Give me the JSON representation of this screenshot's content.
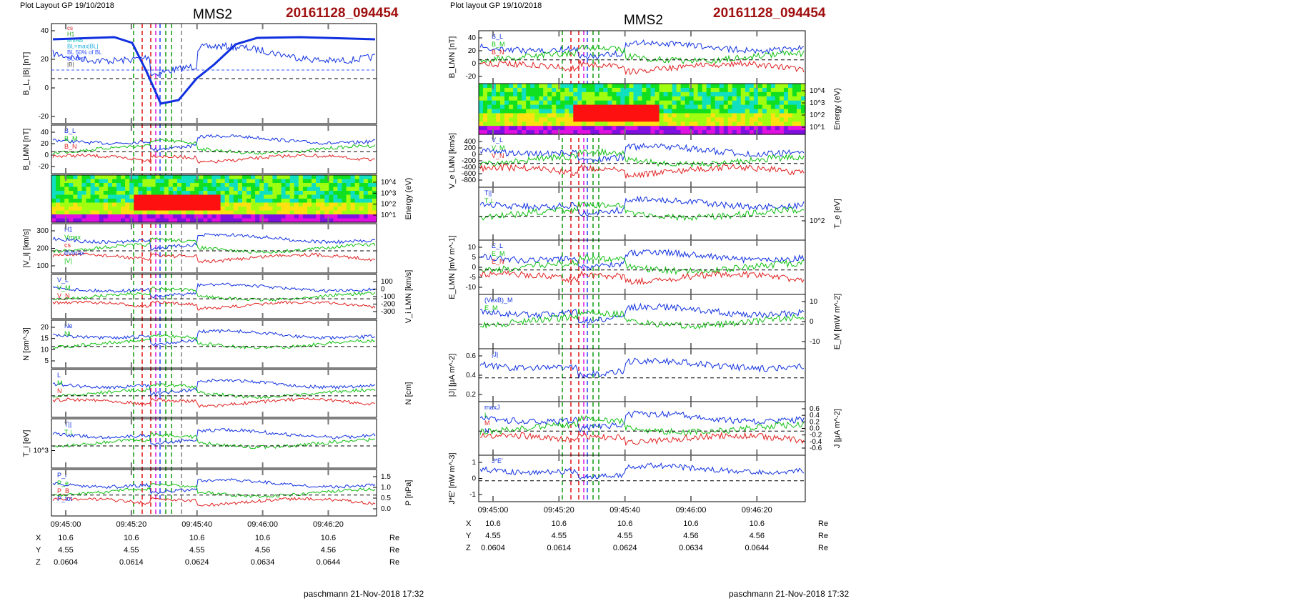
{
  "left": {
    "header": {
      "layout": "Plot Layout GP 19/10/2018",
      "mission": "MMS2",
      "event": "20161128_094454"
    },
    "footer": "paschmann 21-Nov-2018 17:32",
    "time_ticks": [
      "09:45:00",
      "09:45:20",
      "09:45:40",
      "09:46:00",
      "09:46:20"
    ],
    "ephemeris": [
      {
        "label": "X",
        "values": [
          "10.6",
          "10.6",
          "10.6",
          "10.6",
          "10.6"
        ],
        "unit": "Re"
      },
      {
        "label": "Y",
        "values": [
          "4.55",
          "4.55",
          "4.55",
          "4.56",
          "4.56"
        ],
        "unit": "Re"
      },
      {
        "label": "Z",
        "values": [
          "0.0604",
          "0.0614",
          "0.0624",
          "0.0634",
          "0.0644"
        ],
        "unit": "Re"
      }
    ],
    "legend_top": [
      "cs",
      "H1",
      "MVAB",
      "BL=max|BL|",
      "BL 50% of BL",
      "BL brst",
      "|B|"
    ],
    "panels": [
      {
        "ylabel": "B_L, |B| [nT]",
        "ticks": [
          "40",
          "20",
          "0",
          "-20"
        ],
        "side": "left"
      },
      {
        "ylabel": "B_LMN [nT]",
        "ticks": [
          "40",
          "20",
          "0",
          "-20"
        ],
        "side": "left",
        "labels": [
          "B_L",
          "B_M",
          "B_N"
        ]
      },
      {
        "ylabel": "Energy (eV)",
        "ticks": [
          "10^4",
          "10^3",
          "10^2",
          "10^1"
        ],
        "side": "right",
        "spectrogram": true
      },
      {
        "ylabel": "|V_i| [km/s]",
        "ticks": [
          "300",
          "200",
          "100"
        ],
        "side": "left",
        "labels": [
          "H1",
          "Vmax",
          "cs",
          "dVmax",
          "|V|"
        ]
      },
      {
        "ylabel": "V_i LMN [km/s]",
        "ticks": [
          "100",
          "0",
          "-100",
          "-200",
          "-300"
        ],
        "side": "right",
        "labels": [
          "V_L",
          "V_M",
          "V_N"
        ]
      },
      {
        "ylabel": "N [cm^-3]",
        "ticks": [
          "20",
          "15",
          "10",
          "5"
        ],
        "side": "left",
        "labels": [
          "Ne",
          "Ni"
        ]
      },
      {
        "ylabel": "N [cm]",
        "ticks": [],
        "side": "right",
        "labels": [
          "L",
          "M",
          "N"
        ]
      },
      {
        "ylabel": "T_i [eV]",
        "ticks": [
          "10^3"
        ],
        "side": "left",
        "labels": [
          "T||",
          "T⊥"
        ]
      },
      {
        "ylabel": "P [nPa]",
        "ticks": [
          "1.5",
          "1.0",
          "0.5",
          "0.0"
        ],
        "side": "right",
        "labels": [
          "P_i",
          "P_e",
          "P_B",
          "P_tot"
        ]
      }
    ]
  },
  "right": {
    "header": {
      "layout": "Plot layout GP 19/10/2018",
      "mission": "MMS2",
      "event": "20161128_094454"
    },
    "footer": "paschmann 21-Nov-2018 17:32",
    "time_ticks": [
      "09:45:00",
      "09:45:20",
      "09:45:40",
      "09:46:00",
      "09:46:20"
    ],
    "ephemeris": [
      {
        "label": "X",
        "values": [
          "10.6",
          "10.6",
          "10.6",
          "10.6",
          "10.6"
        ],
        "unit": "Re"
      },
      {
        "label": "Y",
        "values": [
          "4.55",
          "4.55",
          "4.55",
          "4.56",
          "4.56"
        ],
        "unit": "Re"
      },
      {
        "label": "Z",
        "values": [
          "0.0604",
          "0.0614",
          "0.0624",
          "0.0634",
          "0.0644"
        ],
        "unit": "Re"
      }
    ],
    "panels": [
      {
        "ylabel": "B_LMN [nT]",
        "ticks": [
          "40",
          "20",
          "0",
          "-20"
        ],
        "side": "left",
        "labels": [
          "B_L",
          "B_M",
          "B_N"
        ]
      },
      {
        "ylabel": "Energy (eV)",
        "ticks": [
          "10^4",
          "10^3",
          "10^2",
          "10^1"
        ],
        "side": "right",
        "spectrogram": true
      },
      {
        "ylabel": "V_e LMN [km/s]",
        "ticks": [
          "400",
          "200",
          "0",
          "-200",
          "-400",
          "-600",
          "-800"
        ],
        "side": "left",
        "labels": [
          "V_L",
          "V_M",
          "V_N"
        ]
      },
      {
        "ylabel": "T_e [eV]",
        "ticks": [
          "10^2"
        ],
        "side": "right",
        "labels": [
          "T||",
          "T⊥"
        ]
      },
      {
        "ylabel": "E_LMN [mV m^-1]",
        "ticks": [
          "10",
          "5",
          "0",
          "-5",
          "-10"
        ],
        "side": "left",
        "labels": [
          "E_L",
          "E_M",
          "E_N"
        ]
      },
      {
        "ylabel": "E_M [mW m^-2]",
        "ticks": [
          "10",
          "0",
          "-10"
        ],
        "side": "right",
        "labels": [
          "(VexB)_M",
          "E_M"
        ]
      },
      {
        "ylabel": "|J| [μA m^-2]",
        "ticks": [
          "0.6",
          "0.4",
          "0.2"
        ],
        "side": "left",
        "labels": [
          "|J|"
        ]
      },
      {
        "ylabel": "J [μA m^-2]",
        "ticks": [
          "0.6",
          "0.4",
          "0.2",
          "0.0",
          "-0.2",
          "-0.4",
          "-0.6"
        ],
        "side": "right",
        "labels": [
          "maxJ",
          "L",
          "M",
          "N"
        ]
      },
      {
        "ylabel": "J*E' [nW m^-3]",
        "ticks": [
          "1",
          "0",
          "-1"
        ],
        "side": "left",
        "labels": [
          "J*E'"
        ]
      }
    ]
  },
  "colors": {
    "event": "#a01010",
    "bl": "#1030e0",
    "bm": "#10c010",
    "bn": "#e02020",
    "black": "#000000",
    "magenta": "#e020e0",
    "cyan": "#20b0e0"
  }
}
